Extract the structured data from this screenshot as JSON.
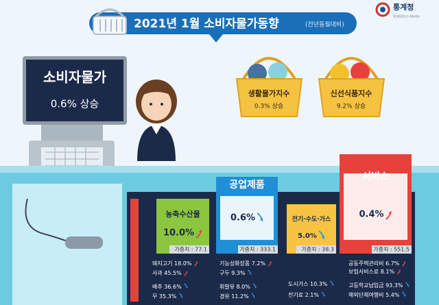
{
  "header": {
    "title": "2021년  1월 소비자물가동향",
    "subtitle": "(전년동월대비)",
    "logo": "통계청",
    "logo_sub": "Statistics Korea"
  },
  "summary": {
    "label": "소비자물가",
    "value": "0.6% 상승"
  },
  "baskets": [
    {
      "label": "생활물가지수",
      "value": "0.3% 상승"
    },
    {
      "label": "신선식품지수",
      "value": "9.2% 상승"
    }
  ],
  "categories": [
    {
      "name": "농축수산물",
      "rate": "10.0%",
      "trend": "up",
      "weight": "가중치 : 77.1",
      "items": [
        {
          "name": "돼지고기",
          "rate": "18.0%",
          "trend": "up"
        },
        {
          "name": "사과",
          "rate": "45.5%",
          "trend": "up"
        },
        {
          "name": "배추",
          "rate": "36.6%",
          "trend": "down"
        },
        {
          "name": "무",
          "rate": "35.3%",
          "trend": "down"
        }
      ]
    },
    {
      "name": "공업제품",
      "rate": "0.6%",
      "trend": "down",
      "weight": "가중치 : 333.1",
      "items": [
        {
          "name": "기능성화장품",
          "rate": "7.2%",
          "trend": "up"
        },
        {
          "name": "구두",
          "rate": "9.3%",
          "trend": "down"
        },
        {
          "name": "휘발유",
          "rate": "8.0%",
          "trend": "down"
        },
        {
          "name": "경유",
          "rate": "11.2%",
          "trend": "down"
        }
      ]
    },
    {
      "name": "전기·수도·가스",
      "rate": "5.0%",
      "trend": "down",
      "weight": "가중치 : 38.3",
      "items": [
        {
          "name": "도시가스",
          "rate": "10.3%",
          "trend": "down"
        },
        {
          "name": "전기료",
          "rate": "2.1%",
          "trend": "down"
        }
      ]
    },
    {
      "name": "서비스",
      "rate": "0.4%",
      "trend": "up",
      "weight": "가중치 : 551.5",
      "items": [
        {
          "name": "공동주택관리비",
          "rate": "6.7%",
          "trend": "up"
        },
        {
          "name": "보험서비스료",
          "rate": "8.1%",
          "trend": "up"
        },
        {
          "name": "고등학교납입금",
          "rate": "93.3%",
          "trend": "down"
        },
        {
          "name": "해외단체여행비",
          "rate": "5.4%",
          "trend": "down"
        }
      ]
    }
  ]
}
